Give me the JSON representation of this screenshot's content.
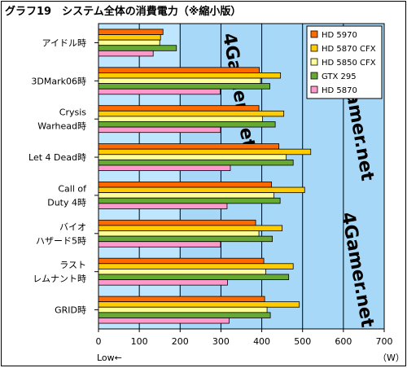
{
  "chart_data": {
    "type": "bar",
    "orientation": "horizontal",
    "title": "グラフ19　システム全体の消費電力（※縮小版）",
    "categories": [
      [
        "アイドル時"
      ],
      [
        "3DMark06時"
      ],
      [
        "Crysis",
        "Warhead時"
      ],
      [
        "Let 4 Dead時"
      ],
      [
        "Call of",
        "Duty 4時"
      ],
      [
        "バイオ",
        "ハザード5時"
      ],
      [
        "ラスト",
        "レムナント時"
      ],
      [
        "GRID時"
      ]
    ],
    "series": [
      {
        "name": "HD 5970",
        "color": "#ff6a00",
        "values": [
          158,
          394,
          393,
          442,
          424,
          385,
          405,
          407
        ]
      },
      {
        "name": "HD 5870 CFX",
        "color": "#ffcc00",
        "values": [
          152,
          446,
          454,
          520,
          505,
          450,
          477,
          492
        ]
      },
      {
        "name": "HD 5850 CFX",
        "color": "#ffff99",
        "values": [
          150,
          397,
          402,
          460,
          430,
          393,
          410,
          413
        ]
      },
      {
        "name": "GTX 295",
        "color": "#66aa33",
        "values": [
          191,
          420,
          433,
          477,
          445,
          426,
          466,
          421
        ]
      },
      {
        "name": "HD 5870",
        "color": "#ff99cc",
        "values": [
          134,
          298,
          299,
          323,
          315,
          299,
          316,
          320
        ]
      }
    ],
    "xlim": [
      0,
      700
    ],
    "xticks": [
      0,
      100,
      200,
      300,
      400,
      500,
      600,
      700
    ],
    "xlabel_left": "Low←",
    "unit": "（W）",
    "grid": true,
    "legend_position": "top-right",
    "watermark": "4Gamer.net"
  },
  "colors": {
    "plot_background": "#bfe6ff",
    "plot_alt_band": "#a8d8f8",
    "grid": "#000000",
    "bar_stroke": "#000000"
  }
}
